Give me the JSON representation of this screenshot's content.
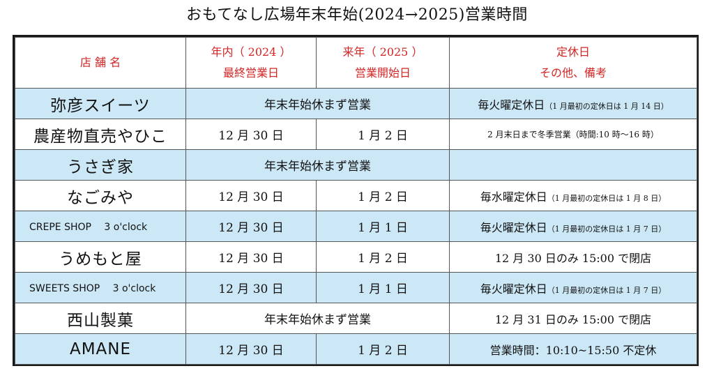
{
  "title": "おもてなし広場年末年始(2024→2025)営業時間",
  "header": {
    "store": "店 舗 名",
    "last_day_line1": "年内（ 2024 ）",
    "last_day_line2": "最終営業日",
    "start_day_line1": "来年（ 2025 ）",
    "start_day_line2": "営業開始日",
    "notes_line1": "定休日",
    "notes_line2": "その他、備考"
  },
  "rows": [
    {
      "store": "弥彦スイーツ",
      "merged": "年末年始休まず営業",
      "note_main": "毎火曜定休日",
      "note_sub": "（1 月最初の定休日は 1 月 14 日）"
    },
    {
      "store": "農産物直売やひこ",
      "last_day": "12 月 30 日",
      "start_day": "1 月 2 日",
      "note_small": "2 月末日まで冬季営業（時間:10 時～16 時）"
    },
    {
      "store": "うさぎ家",
      "merged": "年末年始休まず営業",
      "note_main": ""
    },
    {
      "store": "なごみや",
      "last_day": "12 月 30 日",
      "start_day": "1 月 2 日",
      "note_main": "毎水曜定休日",
      "note_sub": "（1 月最初の定休日は 1 月 8 日）"
    },
    {
      "store": "CREPE SHOP　 3 o'clock",
      "last_day": "12 月 30 日",
      "start_day": "1 月 1 日",
      "note_main": "毎火曜定休日",
      "note_sub": "（1 月最初の定休日は 1 月 7 日）"
    },
    {
      "store": "うめもと屋",
      "last_day": "12 月 30 日",
      "start_day": "1 月 2 日",
      "note_main": "12 月 30 日のみ 15:00 で閉店"
    },
    {
      "store": "SWEETS SHOP　 3 o'clock",
      "last_day": "12 月 30 日",
      "start_day": "1 月 1 日",
      "note_main": "毎火曜定休日",
      "note_sub": "（1 月最初の定休日は 1 月 7 日）"
    },
    {
      "store": "西山製菓",
      "merged": "年末年始休まず営業",
      "note_main": "12 月 31 日のみ 15:00 で閉店"
    },
    {
      "store": "AMANE",
      "last_day": "12 月 30 日",
      "start_day": "1 月 2 日",
      "note_main": "営業時間：10:10~15:50 不定休"
    }
  ],
  "colors": {
    "shaded_row": "#cce8f6",
    "header_text": "#d22525",
    "border": "#1a1a1a"
  }
}
